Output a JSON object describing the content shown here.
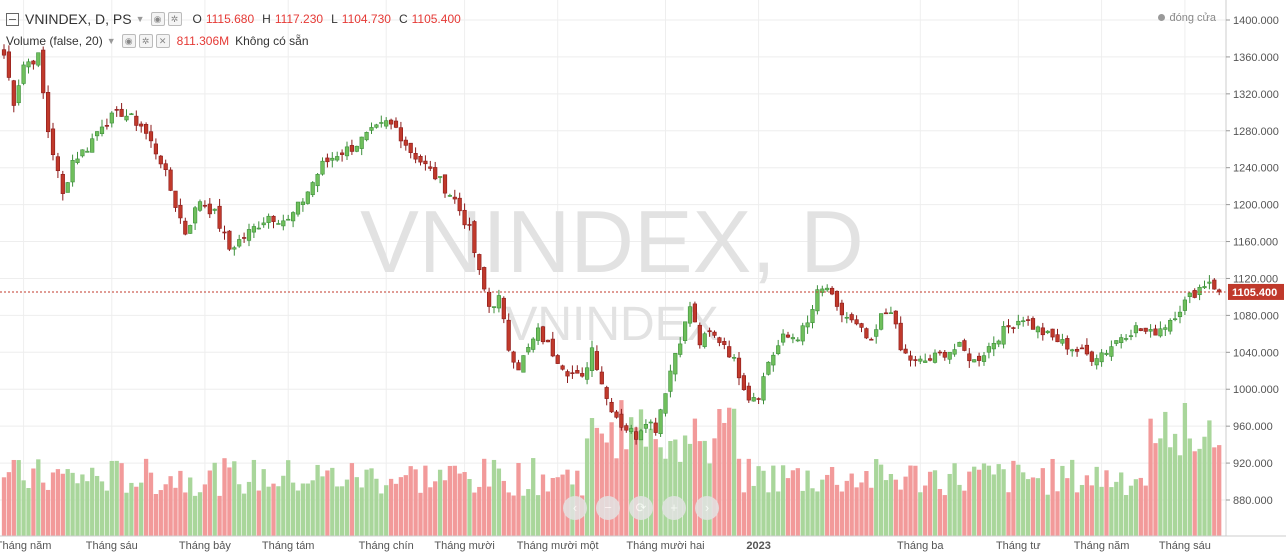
{
  "legend": {
    "symbol_line": "VNINDEX, D, PS",
    "o_label": "O",
    "o_value": "1115.680",
    "h_label": "H",
    "h_value": "1117.230",
    "l_label": "L",
    "l_value": "1104.730",
    "c_label": "C",
    "c_value": "1105.400",
    "volume_label": "Volume (false, 20)",
    "volume_value": "811.306M",
    "volume_na": "Không có sẵn"
  },
  "status": {
    "market_state": "đóng cửa"
  },
  "watermark": {
    "big": "VNINDEX, D",
    "small": "VNINDEX"
  },
  "nav_buttons": [
    {
      "name": "scroll-left-button",
      "glyph": "‹"
    },
    {
      "name": "zoom-out-button",
      "glyph": "−"
    },
    {
      "name": "reset-button",
      "glyph": "⟳"
    },
    {
      "name": "zoom-in-button",
      "glyph": "+"
    },
    {
      "name": "scroll-right-button",
      "glyph": "›"
    }
  ],
  "colors": {
    "up": "#3c8f3a",
    "up_fill": "#6fbf5c",
    "down": "#8b1a1a",
    "down_fill": "#c0392b",
    "vol_up": "#a9d69b",
    "vol_down": "#f29a9a",
    "price_line": "#c0392b",
    "grid": "#eeeeee",
    "axis_text": "#555555",
    "price_tag_bg": "#c0392b",
    "watermark": "#e2e2e2"
  },
  "chart_data": {
    "type": "candlestick",
    "symbol": "VNINDEX",
    "interval": "D",
    "ylim": [
      840,
      1412
    ],
    "y_ticks": [
      "1400.000",
      "1360.000",
      "1320.000",
      "1280.000",
      "1240.000",
      "1200.000",
      "1160.000",
      "1120.000",
      "1080.000",
      "1040.000",
      "1000.000",
      "960.000",
      "920.000",
      "880.000"
    ],
    "y_tick_values": [
      1400,
      1360,
      1320,
      1280,
      1240,
      1200,
      1160,
      1120,
      1080,
      1040,
      1000,
      960,
      920,
      880
    ],
    "current_price_label": "1105.400",
    "current_price": 1105.4,
    "x_labels": [
      {
        "text": "Tháng năm",
        "bar": 4
      },
      {
        "text": "Tháng sáu",
        "bar": 22
      },
      {
        "text": "Tháng bảy",
        "bar": 41
      },
      {
        "text": "Tháng tám",
        "bar": 58
      },
      {
        "text": "Tháng chín",
        "bar": 78
      },
      {
        "text": "Tháng mười",
        "bar": 94
      },
      {
        "text": "Tháng mười một",
        "bar": 113
      },
      {
        "text": "Tháng mười hai",
        "bar": 135
      },
      {
        "text": "2023",
        "bar": 154
      },
      {
        "text": "Tháng ba",
        "bar": 187
      },
      {
        "text": "Tháng tư",
        "bar": 207
      },
      {
        "text": "Tháng năm",
        "bar": 224
      },
      {
        "text": "Tháng sáu",
        "bar": 241
      }
    ],
    "anchors": [
      [
        0,
        1362
      ],
      [
        2,
        1312
      ],
      [
        4,
        1352
      ],
      [
        7,
        1360
      ],
      [
        9,
        1280
      ],
      [
        12,
        1210
      ],
      [
        14,
        1248
      ],
      [
        17,
        1262
      ],
      [
        20,
        1288
      ],
      [
        24,
        1300
      ],
      [
        28,
        1286
      ],
      [
        32,
        1248
      ],
      [
        35,
        1200
      ],
      [
        37,
        1170
      ],
      [
        40,
        1205
      ],
      [
        43,
        1190
      ],
      [
        46,
        1152
      ],
      [
        50,
        1170
      ],
      [
        54,
        1188
      ],
      [
        58,
        1182
      ],
      [
        61,
        1205
      ],
      [
        65,
        1243
      ],
      [
        68,
        1255
      ],
      [
        71,
        1262
      ],
      [
        75,
        1278
      ],
      [
        78,
        1288
      ],
      [
        80,
        1283
      ],
      [
        83,
        1258
      ],
      [
        86,
        1242
      ],
      [
        89,
        1225
      ],
      [
        92,
        1205
      ],
      [
        95,
        1172
      ],
      [
        97,
        1125
      ],
      [
        99,
        1090
      ],
      [
        101,
        1098
      ],
      [
        103,
        1045
      ],
      [
        105,
        1025
      ],
      [
        107,
        1043
      ],
      [
        109,
        1062
      ],
      [
        112,
        1040
      ],
      [
        115,
        1020
      ],
      [
        118,
        1010
      ],
      [
        120,
        1045
      ],
      [
        123,
        990
      ],
      [
        126,
        962
      ],
      [
        129,
        950
      ],
      [
        131,
        968
      ],
      [
        133,
        958
      ],
      [
        135,
        1000
      ],
      [
        137,
        1040
      ],
      [
        139,
        1070
      ],
      [
        140,
        1090
      ],
      [
        142,
        1050
      ],
      [
        144,
        1060
      ],
      [
        147,
        1050
      ],
      [
        149,
        1030
      ],
      [
        152,
        992
      ],
      [
        154,
        995
      ],
      [
        156,
        1030
      ],
      [
        159,
        1055
      ],
      [
        162,
        1058
      ],
      [
        164,
        1070
      ],
      [
        166,
        1103
      ],
      [
        168,
        1110
      ],
      [
        170,
        1085
      ],
      [
        172,
        1078
      ],
      [
        175,
        1062
      ],
      [
        177,
        1048
      ],
      [
        179,
        1078
      ],
      [
        181,
        1088
      ],
      [
        183,
        1042
      ],
      [
        186,
        1028
      ],
      [
        189,
        1032
      ],
      [
        192,
        1040
      ],
      [
        195,
        1045
      ],
      [
        198,
        1030
      ],
      [
        200,
        1040
      ],
      [
        203,
        1058
      ],
      [
        206,
        1072
      ],
      [
        208,
        1078
      ],
      [
        210,
        1068
      ],
      [
        213,
        1058
      ],
      [
        216,
        1050
      ],
      [
        219,
        1042
      ],
      [
        222,
        1035
      ],
      [
        225,
        1042
      ],
      [
        228,
        1058
      ],
      [
        231,
        1066
      ],
      [
        234,
        1060
      ],
      [
        237,
        1070
      ],
      [
        240,
        1088
      ],
      [
        242,
        1100
      ],
      [
        244,
        1110
      ],
      [
        246,
        1118
      ],
      [
        248,
        1105.4
      ]
    ],
    "volume_hint": "Volume bars (no printed values); relative heights estimated."
  }
}
